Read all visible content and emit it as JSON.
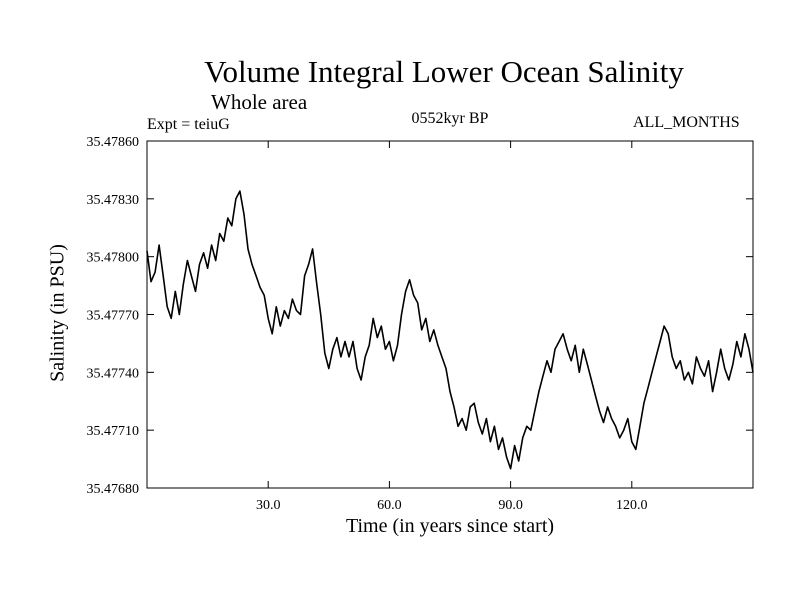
{
  "chart_data": {
    "type": "line",
    "title": "Volume Integral Lower Ocean Salinity",
    "subtitle": "Whole area",
    "experiment_label": "Expt = teiuG",
    "period_label": "0552kyr BP",
    "months_label": "ALL_MONTHS",
    "xlabel": "Time (in years since start)",
    "ylabel": "Salinity (in PSU)",
    "xlim": [
      0,
      150
    ],
    "ylim": [
      35.4768,
      35.4786
    ],
    "x_ticks": [
      30,
      60,
      90,
      120
    ],
    "x_tick_labels": [
      "30.0",
      "60.0",
      "90.0",
      "120.0"
    ],
    "y_ticks": [
      35.4768,
      35.4771,
      35.4774,
      35.4777,
      35.478,
      35.4783,
      35.4786
    ],
    "y_tick_labels": [
      "35.47680",
      "35.47710",
      "35.47740",
      "35.47770",
      "35.47800",
      "35.47830",
      "35.47860"
    ],
    "grid": false,
    "series": [
      {
        "name": "salinity",
        "x": [
          0,
          1,
          2,
          3,
          4,
          5,
          6,
          7,
          8,
          9,
          10,
          11,
          12,
          13,
          14,
          15,
          16,
          17,
          18,
          19,
          20,
          21,
          22,
          23,
          24,
          25,
          26,
          27,
          28,
          29,
          30,
          31,
          32,
          33,
          34,
          35,
          36,
          37,
          38,
          39,
          40,
          41,
          42,
          43,
          44,
          45,
          46,
          47,
          48,
          49,
          50,
          51,
          52,
          53,
          54,
          55,
          56,
          57,
          58,
          59,
          60,
          61,
          62,
          63,
          64,
          65,
          66,
          67,
          68,
          69,
          70,
          71,
          72,
          73,
          74,
          75,
          76,
          77,
          78,
          79,
          80,
          81,
          82,
          83,
          84,
          85,
          86,
          87,
          88,
          89,
          90,
          91,
          92,
          93,
          94,
          95,
          96,
          97,
          98,
          99,
          100,
          101,
          102,
          103,
          104,
          105,
          106,
          107,
          108,
          109,
          110,
          111,
          112,
          113,
          114,
          115,
          116,
          117,
          118,
          119,
          120,
          121,
          122,
          123,
          124,
          125,
          126,
          127,
          128,
          129,
          130,
          131,
          132,
          133,
          134,
          135,
          136,
          137,
          138,
          139,
          140,
          141,
          142,
          143,
          144,
          145,
          146,
          147,
          148,
          149,
          150
        ],
        "values": [
          35.47803,
          35.47787,
          35.47792,
          35.47806,
          35.4779,
          35.47774,
          35.47768,
          35.47782,
          35.4777,
          35.47786,
          35.47798,
          35.4779,
          35.47782,
          35.47796,
          35.47802,
          35.47794,
          35.47806,
          35.47798,
          35.47812,
          35.47808,
          35.4782,
          35.47816,
          35.4783,
          35.47834,
          35.47822,
          35.47804,
          35.47796,
          35.4779,
          35.47784,
          35.4778,
          35.47768,
          35.4776,
          35.47774,
          35.47764,
          35.47772,
          35.47768,
          35.47778,
          35.47772,
          35.4777,
          35.4779,
          35.47796,
          35.47804,
          35.47786,
          35.4777,
          35.4775,
          35.47742,
          35.47752,
          35.47758,
          35.47748,
          35.47756,
          35.47748,
          35.47756,
          35.47742,
          35.47736,
          35.47748,
          35.47754,
          35.47768,
          35.47758,
          35.47764,
          35.47752,
          35.47756,
          35.47746,
          35.47754,
          35.4777,
          35.47782,
          35.47788,
          35.4778,
          35.47776,
          35.47762,
          35.47768,
          35.47756,
          35.47762,
          35.47754,
          35.47748,
          35.47742,
          35.4773,
          35.47722,
          35.47712,
          35.47716,
          35.4771,
          35.47722,
          35.47724,
          35.47714,
          35.47708,
          35.47716,
          35.47704,
          35.47712,
          35.477,
          35.47706,
          35.47696,
          35.4769,
          35.47702,
          35.47694,
          35.47706,
          35.47712,
          35.4771,
          35.4772,
          35.4773,
          35.47738,
          35.47746,
          35.4774,
          35.47752,
          35.47756,
          35.4776,
          35.47752,
          35.47746,
          35.47754,
          35.4774,
          35.47752,
          35.47744,
          35.47736,
          35.47728,
          35.4772,
          35.47714,
          35.47722,
          35.47716,
          35.47712,
          35.47706,
          35.4771,
          35.47716,
          35.47704,
          35.477,
          35.47712,
          35.47724,
          35.47732,
          35.4774,
          35.47748,
          35.47756,
          35.47764,
          35.4776,
          35.47748,
          35.47742,
          35.47746,
          35.47736,
          35.4774,
          35.47734,
          35.47748,
          35.47742,
          35.47738,
          35.47746,
          35.4773,
          35.4774,
          35.47752,
          35.47742,
          35.47736,
          35.47744,
          35.47756,
          35.47748,
          35.4776,
          35.47752,
          35.4774
        ]
      }
    ]
  }
}
